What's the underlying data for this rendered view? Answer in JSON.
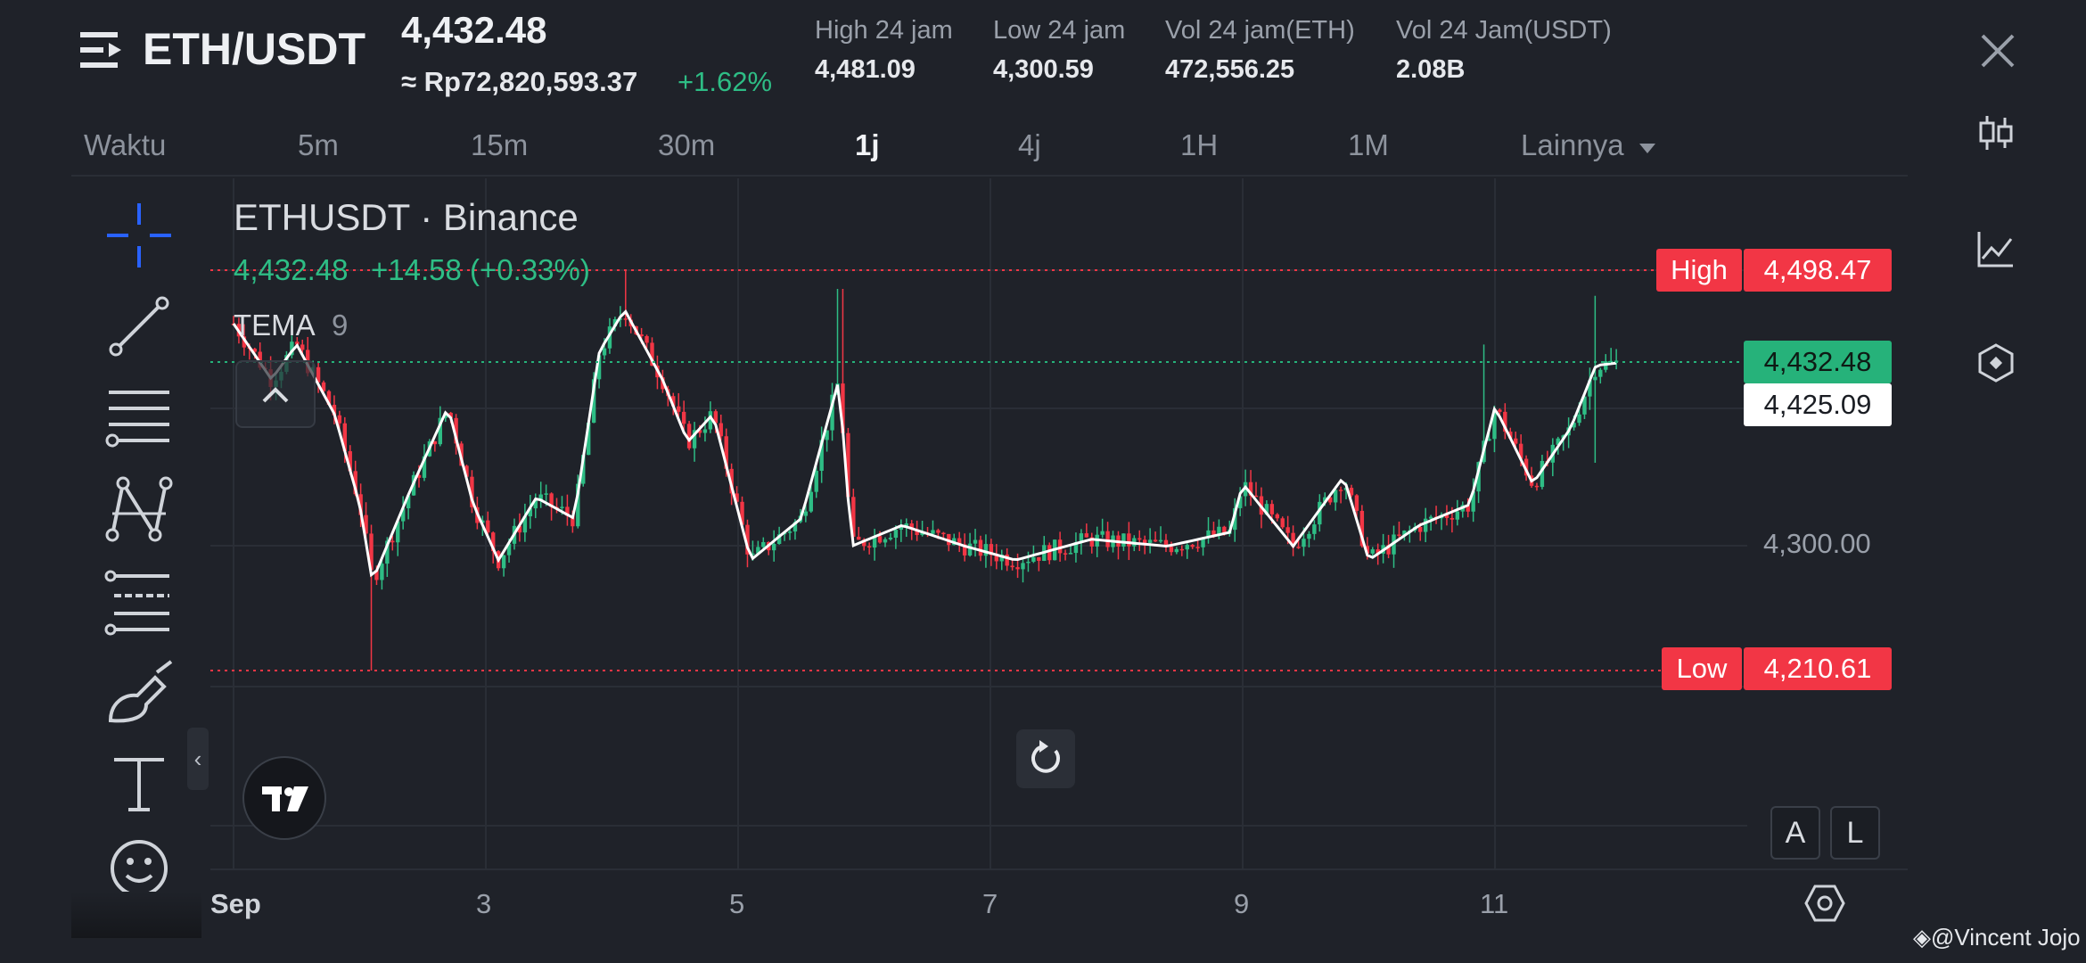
{
  "header": {
    "pair": "ETH/USDT",
    "last_price": "4,432.48",
    "idr_price": "≈ Rp72,820,593.37",
    "change_pct": "+1.62%",
    "stats": [
      {
        "label": "High 24 jam",
        "value": "4,481.09"
      },
      {
        "label": "Low 24 jam",
        "value": "4,300.59"
      },
      {
        "label": "Vol 24 jam(ETH)",
        "value": "472,556.25"
      },
      {
        "label": "Vol 24 Jam(USDT)",
        "value": "2.08B"
      }
    ]
  },
  "timeframes": [
    {
      "label": "Waktu",
      "active": false
    },
    {
      "label": "5m",
      "active": false
    },
    {
      "label": "15m",
      "active": false
    },
    {
      "label": "30m",
      "active": false
    },
    {
      "label": "1j",
      "active": true
    },
    {
      "label": "4j",
      "active": false
    },
    {
      "label": "1H",
      "active": false
    },
    {
      "label": "1M",
      "active": false
    },
    {
      "label": "Lainnya",
      "active": false
    }
  ],
  "tools": [
    "crosshair-icon",
    "trend-line-icon",
    "parallel-lines-icon",
    "pattern-icon",
    "fib-icon",
    "brush-icon",
    "text-icon",
    "emoji-icon"
  ],
  "rail_icons": [
    "candlestick-icon",
    "indicators-icon",
    "settings-hex-icon"
  ],
  "chart": {
    "title": "ETHUSDT · Binance",
    "ohlc_last": "4,432.48",
    "ohlc_change": "+14.58 (+0.33%)",
    "indicator": "TEMA",
    "indicator_period": "9",
    "high_label": "High",
    "high_value": "4,498.47",
    "last_tag": "4,432.48",
    "tema_tag": "4,425.09",
    "low_label": "Low",
    "low_value": "4,210.61",
    "axis_price": "4,300.00",
    "scale_a": "A",
    "scale_l": "L",
    "watermark": "@Vincent Jojo"
  },
  "chart_data": {
    "type": "candlestick",
    "title": "ETHUSDT · Binance",
    "interval": "1j",
    "x_ticks": [
      "Sep",
      "3",
      "5",
      "7",
      "9",
      "11"
    ],
    "y_tick_labels": [
      "4,300.00"
    ],
    "high": 4498.47,
    "low": 4210.61,
    "last": 4432.48,
    "tema_last": 4425.09,
    "colors": {
      "up": "#2ebd85",
      "down": "#f23645",
      "tema": "#ffffff"
    },
    "close_path": [
      {
        "x": "Sep 1",
        "y": 4460
      },
      {
        "x": "Sep 1.3",
        "y": 4420
      },
      {
        "x": "Sep 1.5",
        "y": 4445
      },
      {
        "x": "Sep 1.8",
        "y": 4395
      },
      {
        "x": "Sep 2",
        "y": 4330
      },
      {
        "x": "Sep 2.1",
        "y": 4275
      },
      {
        "x": "Sep 2.4",
        "y": 4340
      },
      {
        "x": "Sep 2.7",
        "y": 4400
      },
      {
        "x": "Sep 2.9",
        "y": 4330
      },
      {
        "x": "Sep 3.1",
        "y": 4290
      },
      {
        "x": "Sep 3.4",
        "y": 4335
      },
      {
        "x": "Sep 3.7",
        "y": 4320
      },
      {
        "x": "Sep 3.9",
        "y": 4440
      },
      {
        "x": "Sep 4.1",
        "y": 4470
      },
      {
        "x": "Sep 4.4",
        "y": 4420
      },
      {
        "x": "Sep 4.6",
        "y": 4375
      },
      {
        "x": "Sep 4.8",
        "y": 4395
      },
      {
        "x": "Sep 5.1",
        "y": 4290
      },
      {
        "x": "Sep 5.5",
        "y": 4320
      },
      {
        "x": "Sep 5.8",
        "y": 4420
      },
      {
        "x": "Sep 5.9",
        "y": 4300
      },
      {
        "x": "Sep 6.3",
        "y": 4315
      },
      {
        "x": "Sep 6.8",
        "y": 4300
      },
      {
        "x": "Sep 7.2",
        "y": 4290
      },
      {
        "x": "Sep 7.8",
        "y": 4305
      },
      {
        "x": "Sep 8.4",
        "y": 4300
      },
      {
        "x": "Sep 8.9",
        "y": 4310
      },
      {
        "x": "Sep 9.0",
        "y": 4345
      },
      {
        "x": "Sep 9.4",
        "y": 4300
      },
      {
        "x": "Sep 9.8",
        "y": 4350
      },
      {
        "x": "Sep 10.0",
        "y": 4290
      },
      {
        "x": "Sep 10.4",
        "y": 4315
      },
      {
        "x": "Sep 10.8",
        "y": 4330
      },
      {
        "x": "Sep 11.0",
        "y": 4400
      },
      {
        "x": "Sep 11.3",
        "y": 4345
      },
      {
        "x": "Sep 11.6",
        "y": 4385
      },
      {
        "x": "Sep 11.8",
        "y": 4430
      },
      {
        "x": "Sep 12.0",
        "y": 4432
      }
    ]
  }
}
